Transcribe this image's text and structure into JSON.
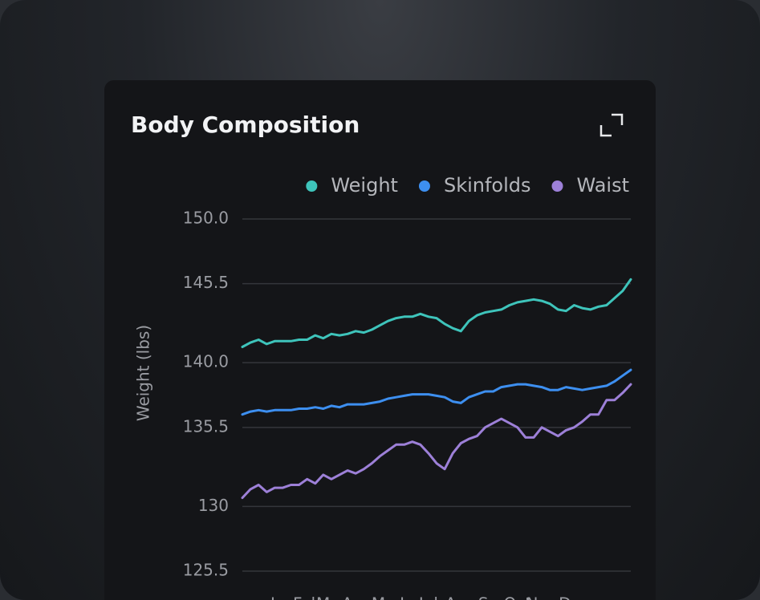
{
  "chart_data": {
    "type": "line",
    "title": "Body Composition",
    "ylabel": "Weight (lbs)",
    "categories": [
      null,
      null,
      null,
      null,
      null,
      "Jan",
      null,
      null,
      "Feb",
      null,
      null,
      "Mar",
      null,
      null,
      "Apr",
      null,
      null,
      null,
      "May",
      null,
      null,
      "Jun",
      null,
      "Jul",
      null,
      null,
      null,
      "Aug",
      null,
      null,
      null,
      "Sep",
      null,
      null,
      "Oct",
      null,
      null,
      "Nov",
      null,
      null,
      null,
      "Dec",
      null,
      null,
      null,
      null,
      null,
      null,
      null
    ],
    "series": [
      {
        "name": "Weight",
        "color": "#3ec4bb",
        "values": [
          141.1,
          141.4,
          141.6,
          141.3,
          141.5,
          141.5,
          141.5,
          141.6,
          141.6,
          141.9,
          141.7,
          142.0,
          141.9,
          142.0,
          142.2,
          142.1,
          142.3,
          142.6,
          142.9,
          143.1,
          143.2,
          143.2,
          143.4,
          143.2,
          143.1,
          142.7,
          142.4,
          142.2,
          142.9,
          143.3,
          143.5,
          143.6,
          143.7,
          144.0,
          144.2,
          144.3,
          144.4,
          144.3,
          144.1,
          143.7,
          143.6,
          144.0,
          143.8,
          143.7,
          143.9,
          144.0,
          144.5,
          145.0,
          145.8
        ]
      },
      {
        "name": "Skinfolds",
        "color": "#3d8ff0",
        "values": [
          136.4,
          136.6,
          136.7,
          136.6,
          136.7,
          136.7,
          136.7,
          136.8,
          136.8,
          136.9,
          136.8,
          137.0,
          136.9,
          137.1,
          137.1,
          137.1,
          137.2,
          137.3,
          137.5,
          137.6,
          137.7,
          137.8,
          137.8,
          137.8,
          137.7,
          137.6,
          137.3,
          137.2,
          137.6,
          137.8,
          138.0,
          138.0,
          138.3,
          138.4,
          138.5,
          138.5,
          138.4,
          138.3,
          138.1,
          138.1,
          138.3,
          138.2,
          138.1,
          138.2,
          138.3,
          138.4,
          138.7,
          139.1,
          139.5
        ]
      },
      {
        "name": "Waist",
        "color": "#9d80d8",
        "values": [
          130.6,
          131.2,
          131.5,
          131.0,
          131.3,
          131.3,
          131.5,
          131.5,
          131.9,
          131.6,
          132.2,
          131.9,
          132.2,
          132.5,
          132.3,
          132.6,
          133.0,
          133.5,
          133.9,
          134.3,
          134.3,
          134.5,
          134.3,
          133.7,
          133.0,
          132.6,
          133.7,
          134.4,
          134.7,
          134.9,
          135.5,
          135.8,
          136.1,
          135.8,
          135.5,
          134.8,
          134.8,
          135.5,
          135.2,
          134.9,
          135.3,
          135.5,
          135.9,
          136.4,
          136.4,
          137.4,
          137.4,
          137.9,
          138.5
        ]
      }
    ],
    "ylim": [
      125.5,
      150
    ],
    "yticks": [
      {
        "value": 150,
        "label": "150.0"
      },
      145.5,
      {
        "value": 140,
        "label": "140.0"
      },
      135.5,
      130,
      125.5
    ],
    "grid": true,
    "legend": "top-right"
  }
}
